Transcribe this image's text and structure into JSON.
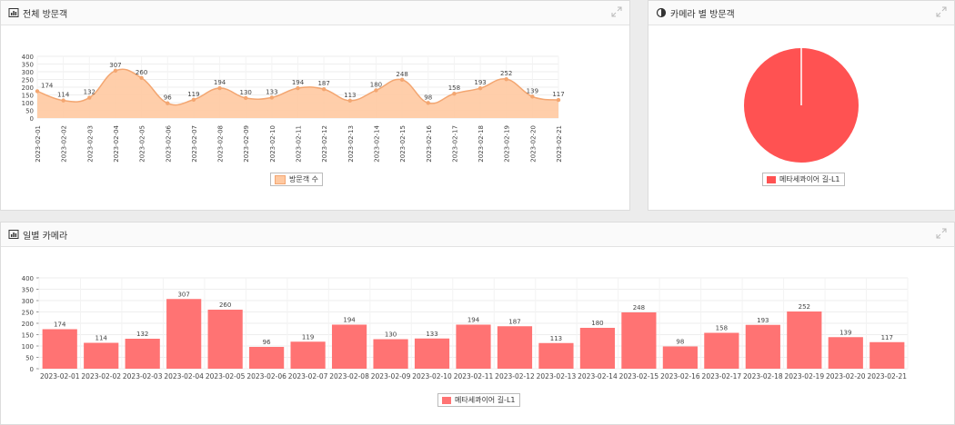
{
  "panels": {
    "total": {
      "title": "전체 방문객",
      "legend": "방문객 수"
    },
    "camera": {
      "title": "카메라 별 방문객",
      "legend": "메타세콰이어 길-L1"
    },
    "daily": {
      "title": "일별 카메라",
      "legend": "메타세콰이어 길-L1"
    }
  },
  "colors": {
    "area_fill": "#ffc9a1",
    "area_line": "#f3a671",
    "bar": "#ff7373",
    "pie": "#ff5252"
  },
  "chart_data": [
    {
      "type": "area",
      "categories": [
        "2023-02-01",
        "2023-02-02",
        "2023-02-03",
        "2023-02-04",
        "2023-02-05",
        "2023-02-06",
        "2023-02-07",
        "2023-02-08",
        "2023-02-09",
        "2023-02-10",
        "2023-02-11",
        "2023-02-12",
        "2023-02-13",
        "2023-02-14",
        "2023-02-15",
        "2023-02-16",
        "2023-02-17",
        "2023-02-18",
        "2023-02-19",
        "2023-02-20",
        "2023-02-21"
      ],
      "series": [
        {
          "name": "방문객 수",
          "values": [
            174,
            114,
            132,
            307,
            260,
            96,
            119,
            194,
            130,
            133,
            194,
            187,
            113,
            180,
            248,
            98,
            158,
            193,
            252,
            139,
            117
          ]
        }
      ],
      "yticks": [
        0,
        50,
        100,
        150,
        200,
        250,
        300,
        350,
        400
      ],
      "ylim": [
        0,
        400
      ],
      "legend": "bottom"
    },
    {
      "type": "pie",
      "labels": [
        "메타세콰이어 길-L1"
      ],
      "values": [
        100
      ],
      "legend": "bottom"
    },
    {
      "type": "bar",
      "categories": [
        "2023-02-01",
        "2023-02-02",
        "2023-02-03",
        "2023-02-04",
        "2023-02-05",
        "2023-02-06",
        "2023-02-07",
        "2023-02-08",
        "2023-02-09",
        "2023-02-10",
        "2023-02-11",
        "2023-02-12",
        "2023-02-13",
        "2023-02-14",
        "2023-02-15",
        "2023-02-16",
        "2023-02-17",
        "2023-02-18",
        "2023-02-19",
        "2023-02-20",
        "2023-02-21"
      ],
      "series": [
        {
          "name": "메타세콰이어 길-L1",
          "values": [
            174,
            114,
            132,
            307,
            260,
            96,
            119,
            194,
            130,
            133,
            194,
            187,
            113,
            180,
            248,
            98,
            158,
            193,
            252,
            139,
            117
          ]
        }
      ],
      "yticks": [
        0,
        50,
        100,
        150,
        200,
        250,
        300,
        350,
        400
      ],
      "ylim": [
        0,
        400
      ],
      "legend": "bottom"
    }
  ]
}
